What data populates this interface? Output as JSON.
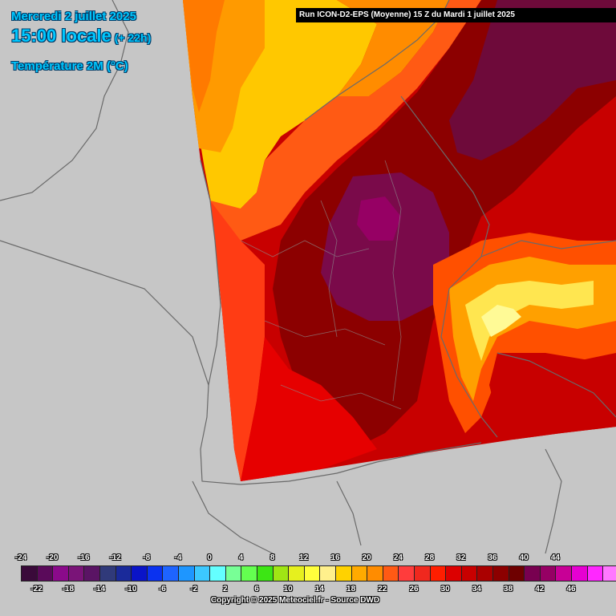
{
  "header": {
    "date": "Mercredi 2 juillet 2025",
    "time": "15:00 locale",
    "lead": "(+ 22h)",
    "parameter": "Température 2M (°C)"
  },
  "run_banner": "Run ICON-D2-EPS (Moyenne) 15 Z du Mardi 1 juillet 2025",
  "legend": {
    "top_labels": [
      "-24",
      "-20",
      "-16",
      "-12",
      "-8",
      "-4",
      "0",
      "4",
      "8",
      "12",
      "16",
      "20",
      "24",
      "28",
      "32",
      "36",
      "40",
      "44"
    ],
    "bottom_labels": [
      "-22",
      "-18",
      "-14",
      "-10",
      "-6",
      "-2",
      "2",
      "6",
      "10",
      "14",
      "18",
      "22",
      "26",
      "30",
      "34",
      "38",
      "42",
      "46"
    ],
    "colors": [
      "#3a0a3a",
      "#5a0a5a",
      "#8a0a8a",
      "#7a1478",
      "#5a1464",
      "#303a7a",
      "#1a2a9a",
      "#0a14c8",
      "#0a32f0",
      "#1e64ff",
      "#1e96ff",
      "#3cc8ff",
      "#64ffff",
      "#78ff96",
      "#64ff50",
      "#3ce614",
      "#a0e614",
      "#e6f01e",
      "#ffff3c",
      "#fff08c",
      "#ffd200",
      "#ffaa00",
      "#ff8c00",
      "#ff5a14",
      "#ff3c3c",
      "#f0281e",
      "#ff1e00",
      "#dc0000",
      "#c80000",
      "#aa0000",
      "#8c0000",
      "#6e0000",
      "#780050",
      "#960064",
      "#c80096",
      "#e600d2",
      "#ff28ff",
      "#ff78ff"
    ]
  },
  "copyright": "Copyright © 2025 Meteociel.fr - Source DWD",
  "map": {
    "region": "France / Western Europe",
    "colors": {
      "land": "#c8c8c8",
      "sea": "#c8c8c8",
      "border": "#6a6a6a",
      "t18": "#ffd200",
      "t20": "#ffaa00",
      "t22": "#ff8c00",
      "t24": "#ff5a14",
      "t28": "#ff1e00",
      "t30": "#dc0000",
      "t32": "#aa0000",
      "t34": "#8c0000",
      "t36": "#6e0a2a",
      "t38": "#780a50",
      "t40": "#960064",
      "alps_low": "#ff8c00",
      "alps_high": "#ffff78"
    }
  }
}
